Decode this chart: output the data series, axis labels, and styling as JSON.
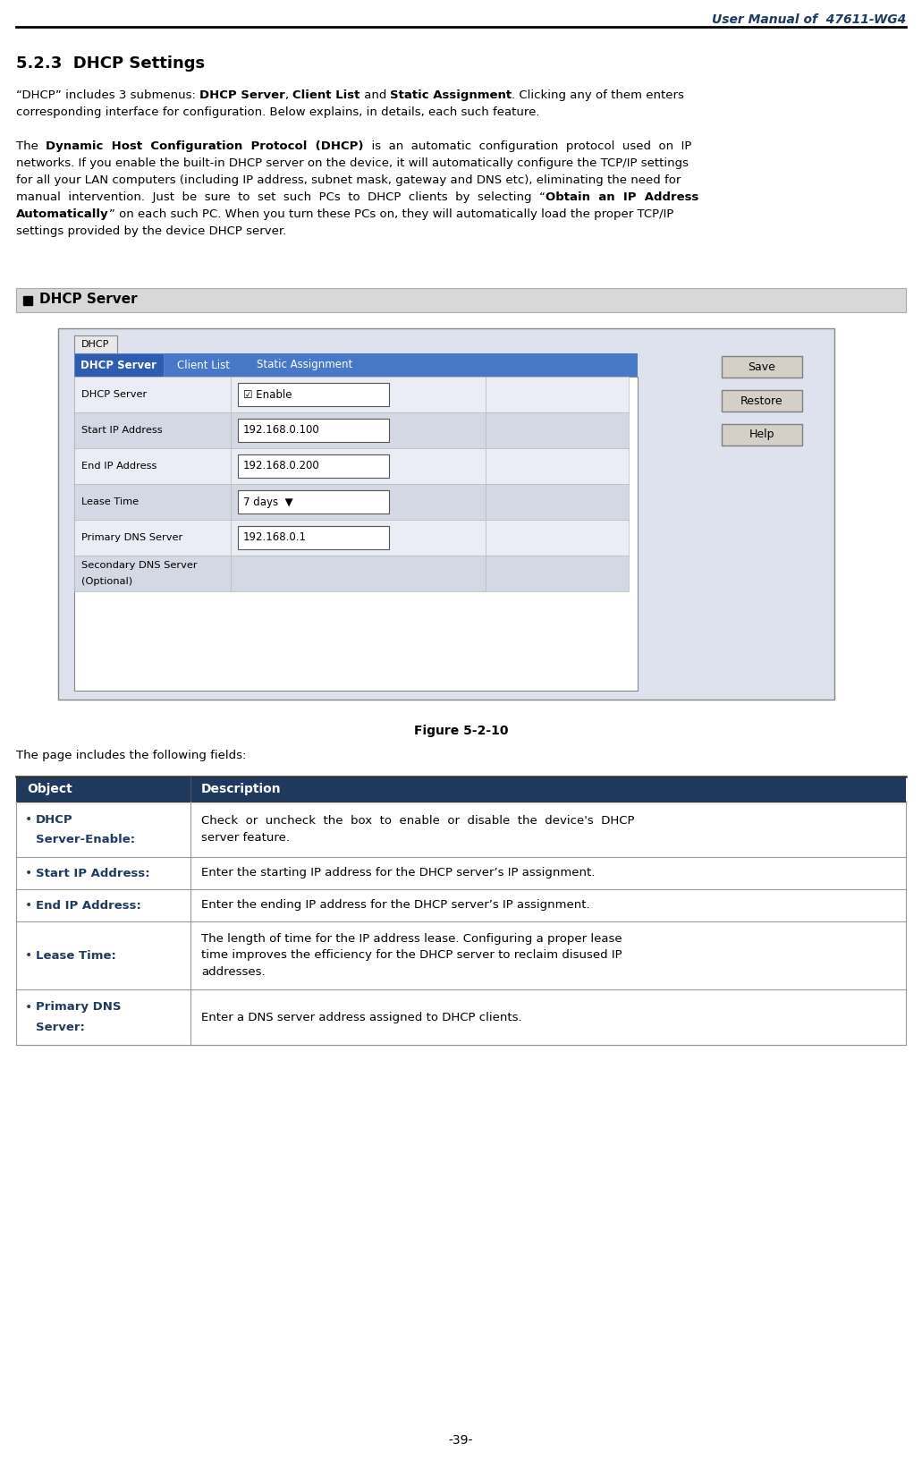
{
  "header_title": "User Manual of  47611-WG4",
  "section": "5.2.3  DHCP Settings",
  "page_number": "-39-",
  "dark_blue": "#1e3a5f",
  "table_header_bg": "#1e3a5f",
  "table_header_fg": "#ffffff",
  "table_col1_header": "Object",
  "table_col2_header": "Description",
  "figure_label": "Figure 5-2-10",
  "fields_label": "The page includes the following fields:",
  "dhcp_server_label": "DHCP Server",
  "ui_form_rows": [
    {
      "label": "DHCP Server",
      "value": "☑ Enable",
      "shaded": false
    },
    {
      "label": "Start IP Address",
      "value": "192.168.0.100",
      "shaded": true
    },
    {
      "label": "End IP Address",
      "value": "192.168.0.200",
      "shaded": false
    },
    {
      "label": "Lease Time",
      "value": "7 days  ▼",
      "shaded": true
    },
    {
      "label": "Primary DNS Server",
      "value": "192.168.0.1",
      "shaded": false
    },
    {
      "label": "Secondary DNS Server\n(Optional)",
      "value": "",
      "shaded": true
    }
  ],
  "ui_buttons": [
    "Save",
    "Restore",
    "Help"
  ],
  "table_rows": [
    {
      "obj_line1": "• DHCP",
      "obj_line2": "   Server-Enable:",
      "desc": "Check  or  uncheck  the  box  to  enable  or  disable  the  device's  DHCP\nserver feature."
    },
    {
      "obj_line1": "• Start IP Address:",
      "obj_line2": "",
      "desc": "Enter the starting IP address for the DHCP server’s IP assignment."
    },
    {
      "obj_line1": "• End IP Address:",
      "obj_line2": "",
      "desc": "Enter the ending IP address for the DHCP server’s IP assignment."
    },
    {
      "obj_line1": "• Lease Time:",
      "obj_line2": "",
      "desc": "The length of time for the IP address lease. Configuring a proper lease\ntime improves the efficiency for the DHCP server to reclaim disused IP\naddresses."
    },
    {
      "obj_line1": "• Primary DNS",
      "obj_line2": "   Server:",
      "desc": "Enter a DNS server address assigned to DHCP clients."
    }
  ]
}
